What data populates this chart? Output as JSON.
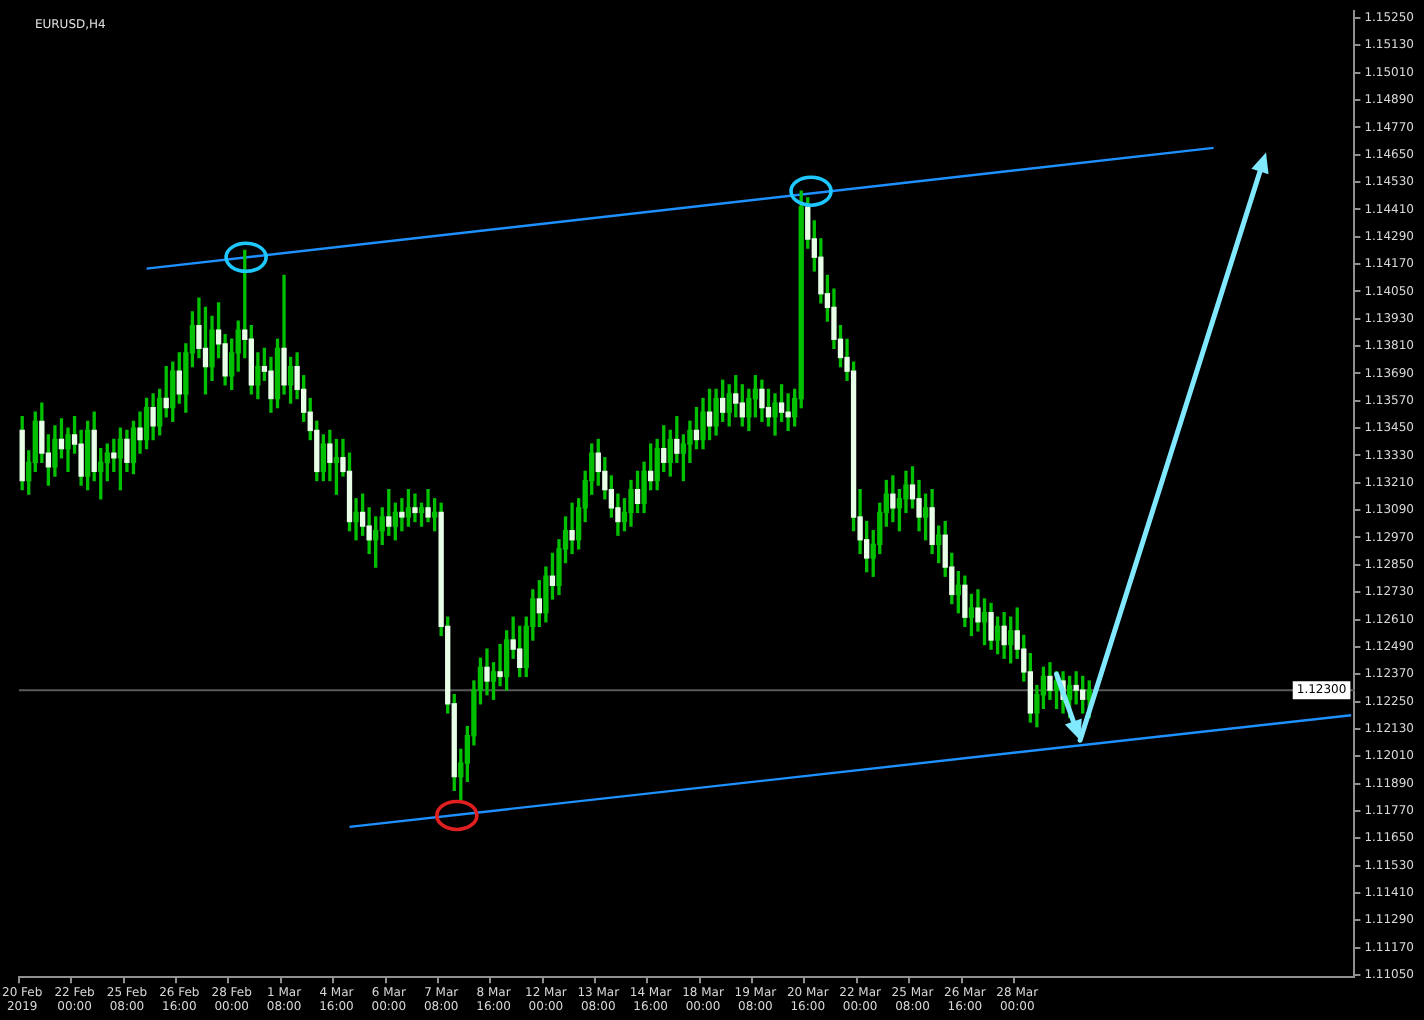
{
  "chart_data": {
    "type": "candlestick",
    "title": "EURUSD,H4",
    "legend": false,
    "color": "#00c000",
    "categories": [
      "20 Feb 2019",
      null,
      null,
      null,
      null,
      null,
      null,
      null,
      "22 Feb 00:00",
      null,
      null,
      null,
      null,
      null,
      null,
      null,
      "25 Feb 08:00",
      null,
      null,
      null,
      null,
      null,
      null,
      null,
      "26 Feb 16:00",
      null,
      null,
      null,
      null,
      null,
      null,
      null,
      "28 Feb 00:00",
      null,
      null,
      null,
      null,
      null,
      null,
      null,
      "1 Mar 08:00",
      null,
      null,
      null,
      null,
      null,
      null,
      null,
      "4 Mar 16:00",
      null,
      null,
      null,
      null,
      null,
      null,
      null,
      "6 Mar 00:00",
      null,
      null,
      null,
      null,
      null,
      null,
      null,
      "7 Mar 08:00",
      null,
      null,
      null,
      null,
      null,
      null,
      null,
      "8 Mar 16:00",
      null,
      null,
      null,
      null,
      null,
      null,
      null,
      "12 Mar 00:00",
      null,
      null,
      null,
      null,
      null,
      null,
      null,
      "13 Mar 08:00",
      null,
      null,
      null,
      null,
      null,
      null,
      null,
      "14 Mar 16:00",
      null,
      null,
      null,
      null,
      null,
      null,
      null,
      "18 Mar 00:00",
      null,
      null,
      null,
      null,
      null,
      null,
      null,
      "19 Mar 08:00",
      null,
      null,
      null,
      null,
      null,
      null,
      null,
      "20 Mar 16:00",
      null,
      null,
      null,
      null,
      null,
      null,
      null,
      "22 Mar 00:00",
      null,
      null,
      null,
      null,
      null,
      null,
      null,
      "25 Mar 08:00",
      null,
      null,
      null,
      null,
      null,
      null,
      null,
      "26 Mar 16:00",
      null,
      null,
      null,
      null,
      null,
      null,
      null,
      "28 Mar 00:00",
      null,
      null,
      null,
      null,
      null,
      null,
      null,
      null,
      null,
      null,
      null,
      null,
      null,
      null,
      null,
      null,
      null,
      null,
      null,
      null,
      null,
      null,
      null,
      null,
      null,
      null,
      null,
      null,
      null,
      null,
      null,
      null,
      null,
      null,
      null,
      null,
      null,
      null,
      null,
      null,
      null,
      null,
      null,
      null,
      null,
      null,
      null,
      null,
      null,
      null,
      null
    ],
    "ohlc": [
      [
        1.1344,
        1.135,
        1.1318,
        1.1322
      ],
      [
        1.1322,
        1.1335,
        1.1316,
        1.133
      ],
      [
        1.133,
        1.1352,
        1.1326,
        1.1348
      ],
      [
        1.1348,
        1.1356,
        1.133,
        1.1334
      ],
      [
        1.1334,
        1.1342,
        1.132,
        1.1328
      ],
      [
        1.1328,
        1.1346,
        1.1324,
        1.134
      ],
      [
        1.134,
        1.1349,
        1.1332,
        1.1336
      ],
      [
        1.1336,
        1.1345,
        1.1326,
        1.1342
      ],
      [
        1.1342,
        1.135,
        1.1334,
        1.1338
      ],
      [
        1.1338,
        1.1344,
        1.132,
        1.1324
      ],
      [
        1.1324,
        1.1348,
        1.1318,
        1.1344
      ],
      [
        1.1344,
        1.1352,
        1.1322,
        1.1326
      ],
      [
        1.1326,
        1.1336,
        1.1314,
        1.133
      ],
      [
        1.133,
        1.1338,
        1.1322,
        1.1334
      ],
      [
        1.1334,
        1.134,
        1.1326,
        1.1332
      ],
      [
        1.1332,
        1.1345,
        1.1318,
        1.134
      ],
      [
        1.134,
        1.1344,
        1.1326,
        1.133
      ],
      [
        1.133,
        1.1348,
        1.1325,
        1.1345
      ],
      [
        1.1345,
        1.1352,
        1.1334,
        1.134
      ],
      [
        1.134,
        1.1358,
        1.1336,
        1.1354
      ],
      [
        1.1354,
        1.136,
        1.134,
        1.1346
      ],
      [
        1.1346,
        1.1362,
        1.1342,
        1.1358
      ],
      [
        1.1358,
        1.1372,
        1.135,
        1.1354
      ],
      [
        1.1354,
        1.1374,
        1.1348,
        1.137
      ],
      [
        1.137,
        1.1378,
        1.1356,
        1.136
      ],
      [
        1.136,
        1.1382,
        1.1352,
        1.1378
      ],
      [
        1.1378,
        1.1396,
        1.1372,
        1.139
      ],
      [
        1.139,
        1.1402,
        1.1376,
        1.138
      ],
      [
        1.138,
        1.1398,
        1.136,
        1.1372
      ],
      [
        1.1372,
        1.1394,
        1.1366,
        1.1388
      ],
      [
        1.1388,
        1.14,
        1.1376,
        1.1382
      ],
      [
        1.1382,
        1.1386,
        1.1364,
        1.1368
      ],
      [
        1.1368,
        1.1384,
        1.1362,
        1.1378
      ],
      [
        1.1378,
        1.1392,
        1.137,
        1.1388
      ],
      [
        1.1388,
        1.1423,
        1.1376,
        1.1384
      ],
      [
        1.1384,
        1.139,
        1.136,
        1.1364
      ],
      [
        1.1364,
        1.1378,
        1.1358,
        1.1372
      ],
      [
        1.1372,
        1.138,
        1.1366,
        1.137
      ],
      [
        1.137,
        1.1376,
        1.1352,
        1.1358
      ],
      [
        1.1358,
        1.1384,
        1.1354,
        1.138
      ],
      [
        1.138,
        1.1412,
        1.136,
        1.1364
      ],
      [
        1.1364,
        1.1376,
        1.1356,
        1.1372
      ],
      [
        1.1372,
        1.1378,
        1.1358,
        1.1362
      ],
      [
        1.1362,
        1.1368,
        1.1348,
        1.1352
      ],
      [
        1.1352,
        1.1358,
        1.134,
        1.1344
      ],
      [
        1.1344,
        1.1348,
        1.1322,
        1.1326
      ],
      [
        1.1326,
        1.1342,
        1.1322,
        1.1338
      ],
      [
        1.1338,
        1.1344,
        1.1322,
        1.133
      ],
      [
        1.133,
        1.134,
        1.1316,
        1.1332
      ],
      [
        1.1332,
        1.134,
        1.1324,
        1.1326
      ],
      [
        1.1326,
        1.1334,
        1.13,
        1.1304
      ],
      [
        1.1304,
        1.1314,
        1.1296,
        1.1308
      ],
      [
        1.1308,
        1.1316,
        1.1298,
        1.1302
      ],
      [
        1.1302,
        1.131,
        1.129,
        1.1296
      ],
      [
        1.1296,
        1.1306,
        1.1284,
        1.13
      ],
      [
        1.13,
        1.131,
        1.1294,
        1.1306
      ],
      [
        1.1306,
        1.1318,
        1.1298,
        1.1302
      ],
      [
        1.1302,
        1.1312,
        1.1296,
        1.1308
      ],
      [
        1.1308,
        1.1314,
        1.13,
        1.1306
      ],
      [
        1.1306,
        1.1318,
        1.1302,
        1.131
      ],
      [
        1.131,
        1.1316,
        1.1304,
        1.1308
      ],
      [
        1.1308,
        1.1312,
        1.1302,
        1.131
      ],
      [
        1.131,
        1.1318,
        1.1304,
        1.1306
      ],
      [
        1.1306,
        1.1314,
        1.13,
        1.1308
      ],
      [
        1.1308,
        1.1312,
        1.1254,
        1.1258
      ],
      [
        1.1258,
        1.1262,
        1.122,
        1.1224
      ],
      [
        1.1224,
        1.1228,
        1.1186,
        1.1192
      ],
      [
        1.1192,
        1.1204,
        1.1181,
        1.1198
      ],
      [
        1.1198,
        1.1214,
        1.119,
        1.121
      ],
      [
        1.121,
        1.1234,
        1.1206,
        1.123
      ],
      [
        1.123,
        1.1244,
        1.1224,
        1.124
      ],
      [
        1.124,
        1.1248,
        1.1228,
        1.1234
      ],
      [
        1.1234,
        1.1242,
        1.1226,
        1.1238
      ],
      [
        1.1238,
        1.125,
        1.1232,
        1.1236
      ],
      [
        1.1236,
        1.1256,
        1.123,
        1.1252
      ],
      [
        1.1252,
        1.1262,
        1.1244,
        1.1248
      ],
      [
        1.1248,
        1.1258,
        1.1236,
        1.124
      ],
      [
        1.124,
        1.1262,
        1.1236,
        1.1258
      ],
      [
        1.1258,
        1.1274,
        1.1252,
        1.127
      ],
      [
        1.127,
        1.1278,
        1.1258,
        1.1264
      ],
      [
        1.1264,
        1.1284,
        1.126,
        1.128
      ],
      [
        1.128,
        1.129,
        1.127,
        1.1276
      ],
      [
        1.1276,
        1.1296,
        1.1272,
        1.1292
      ],
      [
        1.1292,
        1.1306,
        1.1286,
        1.13
      ],
      [
        1.13,
        1.1312,
        1.129,
        1.1296
      ],
      [
        1.1296,
        1.1314,
        1.1292,
        1.131
      ],
      [
        1.131,
        1.1326,
        1.1304,
        1.1322
      ],
      [
        1.1322,
        1.1338,
        1.1316,
        1.1334
      ],
      [
        1.1334,
        1.134,
        1.132,
        1.1326
      ],
      [
        1.1326,
        1.1332,
        1.1314,
        1.1318
      ],
      [
        1.1318,
        1.1324,
        1.1306,
        1.131
      ],
      [
        1.131,
        1.1316,
        1.1298,
        1.1304
      ],
      [
        1.1304,
        1.1314,
        1.13,
        1.1308
      ],
      [
        1.1308,
        1.1322,
        1.1302,
        1.1318
      ],
      [
        1.1318,
        1.1326,
        1.1308,
        1.1312
      ],
      [
        1.1312,
        1.133,
        1.1308,
        1.1326
      ],
      [
        1.1326,
        1.1338,
        1.1318,
        1.1322
      ],
      [
        1.1322,
        1.134,
        1.1318,
        1.1336
      ],
      [
        1.1336,
        1.1346,
        1.1326,
        1.133
      ],
      [
        1.133,
        1.1344,
        1.1324,
        1.134
      ],
      [
        1.134,
        1.135,
        1.133,
        1.1334
      ],
      [
        1.1334,
        1.1342,
        1.1322,
        1.1338
      ],
      [
        1.1338,
        1.1348,
        1.133,
        1.1344
      ],
      [
        1.1344,
        1.1354,
        1.1336,
        1.134
      ],
      [
        1.134,
        1.1358,
        1.1336,
        1.1352
      ],
      [
        1.1352,
        1.1362,
        1.134,
        1.1346
      ],
      [
        1.1346,
        1.1362,
        1.1342,
        1.1358
      ],
      [
        1.1358,
        1.1366,
        1.1348,
        1.1352
      ],
      [
        1.1352,
        1.1364,
        1.1346,
        1.136
      ],
      [
        1.136,
        1.1368,
        1.135,
        1.1356
      ],
      [
        1.1356,
        1.1364,
        1.1346,
        1.135
      ],
      [
        1.135,
        1.1362,
        1.1344,
        1.1358
      ],
      [
        1.1358,
        1.1368,
        1.135,
        1.1362
      ],
      [
        1.1362,
        1.1366,
        1.1348,
        1.1354
      ],
      [
        1.1354,
        1.1362,
        1.1346,
        1.135
      ],
      [
        1.135,
        1.136,
        1.1342,
        1.1356
      ],
      [
        1.1356,
        1.1364,
        1.1348,
        1.1352
      ],
      [
        1.1352,
        1.136,
        1.1344,
        1.135
      ],
      [
        1.135,
        1.1362,
        1.1346,
        1.1358
      ],
      [
        1.1358,
        1.1449,
        1.1354,
        1.1442
      ],
      [
        1.1442,
        1.1446,
        1.1424,
        1.1428
      ],
      [
        1.1428,
        1.1436,
        1.1414,
        1.142
      ],
      [
        1.142,
        1.1428,
        1.14,
        1.1404
      ],
      [
        1.1404,
        1.1412,
        1.1392,
        1.1398
      ],
      [
        1.1398,
        1.1406,
        1.138,
        1.1384
      ],
      [
        1.1384,
        1.139,
        1.1372,
        1.1376
      ],
      [
        1.1376,
        1.1384,
        1.1366,
        1.137
      ],
      [
        1.137,
        1.1374,
        1.13,
        1.1306
      ],
      [
        1.1306,
        1.1318,
        1.129,
        1.1296
      ],
      [
        1.1296,
        1.1304,
        1.1282,
        1.1288
      ],
      [
        1.1288,
        1.13,
        1.128,
        1.1294
      ],
      [
        1.1294,
        1.1312,
        1.129,
        1.1308
      ],
      [
        1.1308,
        1.1322,
        1.1302,
        1.1316
      ],
      [
        1.1316,
        1.1324,
        1.1304,
        1.131
      ],
      [
        1.131,
        1.1318,
        1.13,
        1.1314
      ],
      [
        1.1314,
        1.1326,
        1.1308,
        1.132
      ],
      [
        1.132,
        1.1328,
        1.131,
        1.1314
      ],
      [
        1.1314,
        1.1322,
        1.13,
        1.1306
      ],
      [
        1.1306,
        1.1316,
        1.1296,
        1.131
      ],
      [
        1.131,
        1.1318,
        1.129,
        1.1294
      ],
      [
        1.1294,
        1.1302,
        1.1286,
        1.1298
      ],
      [
        1.1298,
        1.1304,
        1.128,
        1.1284
      ],
      [
        1.1284,
        1.129,
        1.1268,
        1.1272
      ],
      [
        1.1272,
        1.1282,
        1.1264,
        1.1276
      ],
      [
        1.1276,
        1.128,
        1.1258,
        1.1262
      ],
      [
        1.1262,
        1.1272,
        1.1254,
        1.1266
      ],
      [
        1.1266,
        1.1274,
        1.1256,
        1.126
      ],
      [
        1.126,
        1.127,
        1.125,
        1.1264
      ],
      [
        1.1264,
        1.1268,
        1.1248,
        1.1252
      ],
      [
        1.1252,
        1.1262,
        1.1246,
        1.1258
      ],
      [
        1.1258,
        1.1264,
        1.1244,
        1.125
      ],
      [
        1.125,
        1.1262,
        1.1242,
        1.1256
      ],
      [
        1.1256,
        1.1266,
        1.1244,
        1.1248
      ],
      [
        1.1248,
        1.1254,
        1.1234,
        1.1238
      ],
      [
        1.1238,
        1.1246,
        1.1216,
        1.122
      ],
      [
        1.122,
        1.1232,
        1.1214,
        1.1228
      ],
      [
        1.1228,
        1.124,
        1.1222,
        1.1236
      ],
      [
        1.1236,
        1.1242,
        1.1226,
        1.123
      ],
      [
        1.123,
        1.1238,
        1.1222,
        1.1234
      ],
      [
        1.1234,
        1.1238,
        1.122,
        1.1226
      ],
      [
        1.1226,
        1.1236,
        1.1218,
        1.1232
      ],
      [
        1.1232,
        1.1238,
        1.1224,
        1.123
      ],
      [
        1.123,
        1.1236,
        1.122,
        1.1226
      ],
      [
        1.1226,
        1.1234,
        1.1218,
        1.123
      ],
      null,
      null,
      null,
      null,
      null,
      null,
      null,
      null,
      null,
      null,
      null,
      null,
      null,
      null,
      null,
      null,
      null,
      null,
      null,
      null,
      null,
      null,
      null,
      null,
      null,
      null,
      null,
      null,
      null,
      null,
      null,
      null,
      null,
      null,
      null,
      null,
      null,
      null,
      null,
      null
    ],
    "colors": [
      "#e8ffe8",
      "#00c000",
      "#00c000",
      "#e8ffe8",
      "#e8ffe8",
      "#00c000",
      "#e8ffe8",
      "#00c000",
      "#e8ffe8",
      "#e8ffe8",
      "#00c000",
      "#e8ffe8",
      "#00c000",
      "#00c000",
      "#e8ffe8",
      "#00c000",
      "#e8ffe8",
      "#00c000",
      "#e8ffe8",
      "#00c000",
      "#e8ffe8",
      "#00c000",
      "#e8ffe8",
      "#00c000",
      "#e8ffe8",
      "#00c000",
      "#00c000",
      "#e8ffe8",
      "#e8ffe8",
      "#00c000",
      "#e8ffe8",
      "#e8ffe8",
      "#00c000",
      "#00c000",
      "#e8ffe8",
      "#e8ffe8",
      "#00c000",
      "#e8ffe8",
      "#e8ffe8",
      "#00c000",
      "#e8ffe8",
      "#00c000",
      "#e8ffe8",
      "#e8ffe8",
      "#e8ffe8",
      "#e8ffe8",
      "#00c000",
      "#e8ffe8",
      "#00c000",
      "#e8ffe8",
      "#e8ffe8",
      "#00c000",
      "#e8ffe8",
      "#e8ffe8",
      "#00c000",
      "#00c000",
      "#e8ffe8",
      "#00c000",
      "#e8ffe8",
      "#00c000",
      "#e8ffe8",
      "#00c000",
      "#e8ffe8",
      "#00c000",
      "#e8ffe8",
      "#e8ffe8",
      "#e8ffe8",
      "#00c000",
      "#00c000",
      "#00c000",
      "#00c000",
      "#e8ffe8",
      "#00c000",
      "#e8ffe8",
      "#00c000",
      "#e8ffe8",
      "#e8ffe8",
      "#00c000",
      "#00c000",
      "#e8ffe8",
      "#00c000",
      "#e8ffe8",
      "#00c000",
      "#00c000",
      "#e8ffe8",
      "#00c000",
      "#00c000",
      "#00c000",
      "#e8ffe8",
      "#e8ffe8",
      "#e8ffe8",
      "#e8ffe8",
      "#00c000",
      "#00c000",
      "#e8ffe8",
      "#00c000",
      "#e8ffe8",
      "#00c000",
      "#e8ffe8",
      "#00c000",
      "#e8ffe8",
      "#00c000",
      "#00c000",
      "#e8ffe8",
      "#00c000",
      "#e8ffe8",
      "#00c000",
      "#e8ffe8",
      "#00c000",
      "#e8ffe8",
      "#e8ffe8",
      "#00c000",
      "#00c000",
      "#e8ffe8",
      "#e8ffe8",
      "#00c000",
      "#e8ffe8",
      "#e8ffe8",
      "#00c000",
      "#00c000",
      "#e8ffe8",
      "#e8ffe8",
      "#e8ffe8",
      "#e8ffe8",
      "#e8ffe8",
      "#e8ffe8",
      "#e8ffe8",
      "#e8ffe8",
      "#e8ffe8",
      "#e8ffe8",
      "#00c000",
      "#00c000",
      "#00c000",
      "#e8ffe8",
      "#00c000",
      "#00c000",
      "#e8ffe8",
      "#e8ffe8",
      "#00c000",
      "#e8ffe8",
      "#00c000",
      "#e8ffe8",
      "#e8ffe8",
      "#00c000",
      "#e8ffe8",
      "#00c000",
      "#e8ffe8",
      "#00c000",
      "#e8ffe8",
      "#00c000",
      "#e8ffe8",
      "#00c000",
      "#e8ffe8",
      "#e8ffe8",
      "#e8ffe8",
      "#00c000",
      "#00c000",
      "#e8ffe8",
      "#00c000",
      "#e8ffe8",
      "#00c000",
      "#e8ffe8",
      "#e8ffe8",
      "#00c000",
      null,
      null,
      null,
      null,
      null,
      null,
      null,
      null,
      null,
      null,
      null,
      null,
      null,
      null,
      null,
      null,
      null,
      null,
      null,
      null,
      null,
      null,
      null,
      null,
      null,
      null,
      null,
      null,
      null,
      null,
      null,
      null,
      null,
      null,
      null,
      null,
      null,
      null,
      null,
      null
    ],
    "series": [
      {
        "type": "line",
        "color": "#1e90ff",
        "values": [
          null,
          null,
          null,
          null,
          null,
          null,
          null,
          null,
          null,
          null,
          null,
          null,
          null,
          null,
          null,
          null,
          null,
          null,
          null,
          1.1415,
          null,
          null,
          null,
          null,
          null,
          null,
          null,
          null,
          null,
          null,
          null,
          null,
          null,
          null,
          null,
          null,
          null,
          null,
          null,
          null,
          null,
          null,
          null,
          null,
          null,
          null,
          null,
          null,
          null,
          null,
          null,
          null,
          null,
          null,
          null,
          null,
          null,
          null,
          null,
          null,
          null,
          null,
          null,
          null,
          null,
          null,
          null,
          null,
          null,
          null,
          null,
          null,
          null,
          null,
          null,
          null,
          null,
          null,
          null,
          null,
          null,
          null,
          null,
          null,
          null,
          null,
          null,
          null,
          null,
          null,
          null,
          null,
          null,
          null,
          null,
          null,
          null,
          null,
          null,
          null,
          null,
          null,
          null,
          null,
          null,
          null,
          null,
          null,
          null,
          null,
          null,
          null,
          null,
          null,
          null,
          null,
          null,
          null,
          null,
          null,
          null,
          null,
          null,
          null,
          null,
          null,
          null,
          null,
          null,
          null,
          null,
          null,
          null,
          null,
          null,
          null,
          null,
          null,
          null,
          null,
          null,
          null,
          null,
          null,
          null,
          null,
          null,
          null,
          null,
          null,
          null,
          null,
          null,
          null,
          null,
          null,
          null,
          null,
          null,
          null,
          null,
          null,
          null,
          null,
          null,
          null,
          null,
          null,
          null,
          null,
          null,
          null,
          null,
          null,
          null,
          null,
          null,
          null,
          null,
          null,
          null,
          null,
          1.1468,
          null,
          null,
          null,
          null,
          null,
          null,
          null,
          null,
          null,
          null,
          null,
          null,
          null,
          null,
          null,
          null,
          null,
          null,
          null,
          null,
          null
        ]
      },
      {
        "type": "line",
        "color": "#1e90ff",
        "values": [
          null,
          null,
          null,
          null,
          null,
          null,
          null,
          null,
          null,
          null,
          null,
          null,
          null,
          null,
          null,
          null,
          null,
          null,
          null,
          null,
          null,
          null,
          null,
          null,
          null,
          null,
          null,
          null,
          null,
          null,
          null,
          null,
          null,
          null,
          null,
          null,
          null,
          null,
          null,
          null,
          null,
          null,
          null,
          null,
          null,
          null,
          null,
          null,
          null,
          null,
          1.117,
          null,
          null,
          null,
          null,
          null,
          null,
          null,
          null,
          null,
          null,
          null,
          null,
          null,
          null,
          null,
          null,
          null,
          null,
          null,
          null,
          null,
          null,
          null,
          null,
          null,
          null,
          null,
          null,
          null,
          null,
          null,
          null,
          null,
          null,
          null,
          null,
          null,
          null,
          null,
          null,
          null,
          null,
          null,
          null,
          null,
          null,
          null,
          null,
          null,
          null,
          null,
          null,
          null,
          null,
          null,
          null,
          null,
          null,
          null,
          null,
          null,
          null,
          null,
          null,
          null,
          null,
          null,
          null,
          null,
          null,
          null,
          null,
          null,
          null,
          null,
          null,
          null,
          null,
          null,
          null,
          null,
          null,
          null,
          null,
          null,
          null,
          null,
          null,
          null,
          null,
          null,
          null,
          null,
          null,
          null,
          null,
          null,
          null,
          null,
          null,
          null,
          null,
          null,
          null,
          null,
          null,
          null,
          null,
          null,
          null,
          null,
          null,
          null,
          null,
          null,
          null,
          null,
          null,
          null,
          null,
          null,
          null,
          null,
          null,
          null,
          null,
          null,
          null,
          null,
          null,
          null,
          null,
          null,
          null,
          null,
          null,
          null,
          null,
          null,
          null,
          null,
          null,
          null,
          null,
          null,
          null,
          null,
          null,
          null,
          null,
          null,
          null,
          1.1219
        ]
      }
    ],
    "ref_lines": [
      {
        "axis": "y",
        "value": 1.123,
        "label": "1.12300",
        "color": "#5a5a5a"
      }
    ],
    "ylim": [
      1.1104,
      1.1528
    ],
    "yticks": [
      {
        "value": 1.1105,
        "label": "1.11050"
      },
      {
        "value": 1.1117,
        "label": "1.11170"
      },
      {
        "value": 1.1129,
        "label": "1.11290"
      },
      {
        "value": 1.1141,
        "label": "1.11410"
      },
      {
        "value": 1.1153,
        "label": "1.11530"
      },
      {
        "value": 1.1165,
        "label": "1.11650"
      },
      {
        "value": 1.1177,
        "label": "1.11770"
      },
      {
        "value": 1.1189,
        "label": "1.11890"
      },
      {
        "value": 1.1201,
        "label": "1.12010"
      },
      {
        "value": 1.1213,
        "label": "1.12130"
      },
      {
        "value": 1.1225,
        "label": "1.12250"
      },
      {
        "value": 1.1237,
        "label": "1.12370"
      },
      {
        "value": 1.1249,
        "label": "1.12490"
      },
      {
        "value": 1.1261,
        "label": "1.12610"
      },
      {
        "value": 1.1273,
        "label": "1.12730"
      },
      {
        "value": 1.1285,
        "label": "1.12850"
      },
      {
        "value": 1.1297,
        "label": "1.12970"
      },
      {
        "value": 1.1309,
        "label": "1.13090"
      },
      {
        "value": 1.1321,
        "label": "1.13210"
      },
      {
        "value": 1.1333,
        "label": "1.13330"
      },
      {
        "value": 1.1345,
        "label": "1.13450"
      },
      {
        "value": 1.1357,
        "label": "1.13570"
      },
      {
        "value": 1.1369,
        "label": "1.13690"
      },
      {
        "value": 1.1381,
        "label": "1.13810"
      },
      {
        "value": 1.1393,
        "label": "1.13930"
      },
      {
        "value": 1.1405,
        "label": "1.14050"
      },
      {
        "value": 1.1417,
        "label": "1.14170"
      },
      {
        "value": 1.1429,
        "label": "1.14290"
      },
      {
        "value": 1.1441,
        "label": "1.14410"
      },
      {
        "value": 1.1453,
        "label": "1.14530"
      },
      {
        "value": 1.1465,
        "label": "1.14650"
      },
      {
        "value": 1.1477,
        "label": "1.14770"
      },
      {
        "value": 1.1489,
        "label": "1.14890"
      },
      {
        "value": 1.1501,
        "label": "1.15010"
      },
      {
        "value": 1.1513,
        "label": "1.15130"
      },
      {
        "value": 1.1525,
        "label": "1.15250"
      }
    ]
  }
}
